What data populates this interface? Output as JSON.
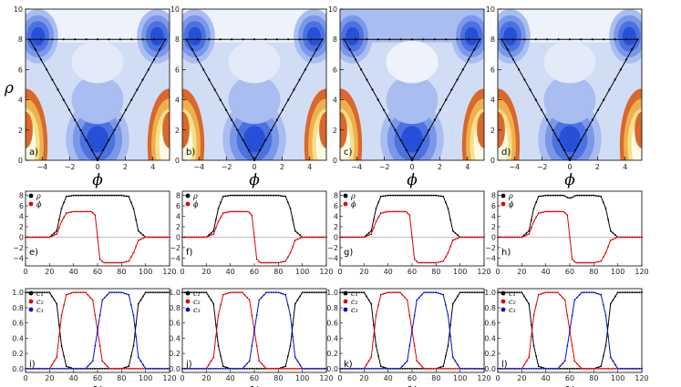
{
  "figure": {
    "contour_row": {
      "ylabel": "ρ",
      "xlabel": "ϕ",
      "panel_labels": [
        "a)",
        "b)",
        "c)",
        "d)"
      ],
      "xticks": [
        "−4",
        "−2",
        "0",
        "2",
        "4"
      ],
      "yticks": [
        "0",
        "2",
        "4",
        "6",
        "8",
        "10"
      ]
    },
    "field_row": {
      "panel_labels": [
        "e)",
        "f)",
        "g)",
        "h)"
      ],
      "legend": [
        "ρ",
        "ϕ"
      ],
      "xticks": [
        "0",
        "20",
        "40",
        "60",
        "80",
        "100",
        "120"
      ],
      "yticks": [
        "−4",
        "−2",
        "0",
        "2",
        "4",
        "6",
        "8"
      ]
    },
    "prob_row": {
      "xlabel": "x",
      "panel_labels": [
        "i)",
        "j)",
        "k)",
        "l)"
      ],
      "legend": [
        "c₁",
        "c₂",
        "c₃"
      ],
      "xticks": [
        "0",
        "20",
        "40",
        "60",
        "80",
        "100",
        "120"
      ],
      "yticks": [
        "0.0",
        "0.2",
        "0.4",
        "0.6",
        "0.8",
        "1.0"
      ]
    },
    "colors": {
      "rho": "#000000",
      "phi": "#e00000",
      "c1": "#000000",
      "c2": "#e00000",
      "c3": "#0010c8",
      "contour_deep": "#2650d8",
      "contour_light": "#eef3fb"
    }
  },
  "chart_data": [
    {
      "type": "contour",
      "panel": "a",
      "xlabel": "ϕ",
      "ylabel": "ρ",
      "xlim": [
        -5.2,
        5.2
      ],
      "ylim": [
        0,
        10
      ],
      "trajectory": {
        "x": [
          0,
          4.9,
          -4.9,
          0
        ],
        "y": [
          0,
          8,
          8,
          0
        ]
      }
    },
    {
      "type": "contour",
      "panel": "b",
      "xlabel": "ϕ",
      "ylabel": "",
      "xlim": [
        -5.2,
        5.2
      ],
      "ylim": [
        0,
        10
      ],
      "trajectory": {
        "x": [
          0,
          4.9,
          -4.9,
          0
        ],
        "y": [
          0,
          8,
          8,
          0
        ]
      }
    },
    {
      "type": "contour",
      "panel": "c",
      "xlabel": "ϕ",
      "ylabel": "",
      "xlim": [
        -5.2,
        5.2
      ],
      "ylim": [
        0,
        10
      ],
      "trajectory": {
        "x": [
          0,
          4.9,
          -4.9,
          0
        ],
        "y": [
          0,
          8,
          8,
          0
        ]
      }
    },
    {
      "type": "contour",
      "panel": "d",
      "xlabel": "ϕ",
      "ylabel": "",
      "xlim": [
        -5.2,
        5.2
      ],
      "ylim": [
        0,
        10
      ],
      "trajectory": {
        "x": [
          0,
          4.9,
          -4.9,
          0
        ],
        "y": [
          0,
          8,
          8,
          0
        ]
      }
    },
    {
      "type": "line",
      "panel": "e",
      "xlim": [
        0,
        120
      ],
      "ylim": [
        -5.5,
        8.8
      ],
      "series": [
        {
          "name": "ρ",
          "x": [
            0,
            20,
            26,
            30,
            34,
            40,
            50,
            60,
            70,
            80,
            86,
            90,
            94,
            100,
            120
          ],
          "y": [
            0,
            0,
            1.2,
            5.5,
            7.8,
            8,
            8,
            8,
            8,
            8,
            7.8,
            5.5,
            1.2,
            0,
            0
          ]
        },
        {
          "name": "ϕ",
          "x": [
            0,
            20,
            26,
            30,
            34,
            40,
            55,
            58,
            60,
            62,
            65,
            80,
            86,
            90,
            94,
            100,
            120
          ],
          "y": [
            0,
            0,
            0.6,
            3,
            4.6,
            4.9,
            4.9,
            4.2,
            0,
            -4.2,
            -4.9,
            -4.9,
            -4.6,
            -3,
            -0.6,
            0,
            0
          ]
        }
      ]
    },
    {
      "type": "line",
      "panel": "f",
      "xlim": [
        0,
        120
      ],
      "ylim": [
        -5.5,
        8.8
      ],
      "series": [
        {
          "name": "ρ",
          "x": [
            0,
            20,
            26,
            30,
            34,
            40,
            50,
            60,
            70,
            80,
            86,
            90,
            94,
            100,
            120
          ],
          "y": [
            0,
            0,
            1.2,
            5.5,
            7.8,
            8,
            8,
            8,
            8,
            8,
            7.8,
            5.5,
            1.2,
            0,
            0
          ]
        },
        {
          "name": "ϕ",
          "x": [
            0,
            20,
            26,
            30,
            34,
            40,
            55,
            58,
            60,
            62,
            65,
            80,
            86,
            90,
            94,
            100,
            120
          ],
          "y": [
            0,
            0,
            0.6,
            3,
            4.6,
            4.9,
            4.9,
            4.2,
            0,
            -4.2,
            -4.9,
            -4.9,
            -4.6,
            -3,
            -0.6,
            0,
            0
          ]
        }
      ]
    },
    {
      "type": "line",
      "panel": "g",
      "xlim": [
        0,
        120
      ],
      "ylim": [
        -5.5,
        8.8
      ],
      "series": [
        {
          "name": "ρ",
          "x": [
            0,
            20,
            26,
            30,
            34,
            40,
            50,
            60,
            70,
            80,
            86,
            90,
            94,
            100,
            120
          ],
          "y": [
            0,
            0,
            1.2,
            5.5,
            7.8,
            8,
            8,
            8,
            8,
            8,
            7.8,
            5.5,
            1.2,
            0,
            0
          ]
        },
        {
          "name": "ϕ",
          "x": [
            0,
            20,
            26,
            30,
            34,
            40,
            55,
            58,
            60,
            62,
            65,
            80,
            86,
            90,
            94,
            100,
            120
          ],
          "y": [
            0,
            0,
            0.6,
            3,
            4.6,
            4.9,
            4.9,
            4.2,
            0,
            -4.2,
            -4.9,
            -4.9,
            -4.6,
            -3,
            -0.6,
            0,
            0
          ]
        }
      ]
    },
    {
      "type": "line",
      "panel": "h",
      "xlim": [
        0,
        120
      ],
      "ylim": [
        -5.5,
        8.8
      ],
      "series": [
        {
          "name": "ρ",
          "x": [
            0,
            20,
            26,
            30,
            34,
            40,
            55,
            58,
            60,
            62,
            65,
            80,
            86,
            90,
            94,
            100,
            120
          ],
          "y": [
            0,
            0,
            1.2,
            5.5,
            7.8,
            8,
            8,
            7.6,
            7.5,
            7.6,
            8,
            8,
            7.8,
            5.5,
            1.2,
            0,
            0
          ]
        },
        {
          "name": "ϕ",
          "x": [
            0,
            20,
            26,
            30,
            34,
            40,
            55,
            58,
            60,
            62,
            65,
            80,
            86,
            90,
            94,
            100,
            120
          ],
          "y": [
            0,
            0,
            0.6,
            3,
            4.6,
            4.9,
            4.9,
            4.2,
            0,
            -4.2,
            -4.9,
            -4.9,
            -4.6,
            -3,
            -0.6,
            0,
            0
          ]
        }
      ]
    },
    {
      "type": "line",
      "panel": "i",
      "xlabel": "x",
      "xlim": [
        0,
        120
      ],
      "ylim": [
        -0.05,
        1.05
      ],
      "series": [
        {
          "name": "c₁",
          "x": [
            0,
            20,
            26,
            30,
            34,
            40,
            80,
            86,
            90,
            94,
            100,
            120
          ],
          "y": [
            1,
            1,
            0.85,
            0.3,
            0.03,
            0,
            0,
            0.03,
            0.3,
            0.85,
            1,
            1
          ]
        },
        {
          "name": "c₂",
          "x": [
            0,
            20,
            26,
            30,
            34,
            40,
            50,
            56,
            60,
            64,
            70,
            120
          ],
          "y": [
            0,
            0,
            0.15,
            0.7,
            0.97,
            1,
            1,
            0.9,
            0.5,
            0.1,
            0,
            0
          ]
        },
        {
          "name": "c₃",
          "x": [
            0,
            50,
            56,
            60,
            64,
            70,
            80,
            86,
            90,
            94,
            100,
            120
          ],
          "y": [
            0,
            0,
            0.1,
            0.5,
            0.9,
            1,
            1,
            0.97,
            0.7,
            0.15,
            0,
            0
          ]
        }
      ]
    },
    {
      "type": "line",
      "panel": "j",
      "xlabel": "x",
      "xlim": [
        0,
        120
      ],
      "ylim": [
        -0.05,
        1.05
      ],
      "series": [
        {
          "name": "c₁",
          "x": [
            0,
            20,
            26,
            30,
            34,
            40,
            80,
            86,
            90,
            94,
            100,
            120
          ],
          "y": [
            1,
            1,
            0.85,
            0.3,
            0.03,
            0,
            0,
            0.03,
            0.3,
            0.85,
            1,
            1
          ]
        },
        {
          "name": "c₂",
          "x": [
            0,
            20,
            26,
            30,
            34,
            40,
            50,
            56,
            60,
            64,
            70,
            120
          ],
          "y": [
            0,
            0,
            0.15,
            0.7,
            0.97,
            1,
            1,
            0.9,
            0.5,
            0.1,
            0,
            0
          ]
        },
        {
          "name": "c₃",
          "x": [
            0,
            50,
            56,
            60,
            64,
            70,
            80,
            86,
            90,
            94,
            100,
            120
          ],
          "y": [
            0,
            0,
            0.1,
            0.5,
            0.9,
            1,
            1,
            0.97,
            0.7,
            0.15,
            0,
            0
          ]
        }
      ]
    },
    {
      "type": "line",
      "panel": "k",
      "xlabel": "x",
      "xlim": [
        0,
        120
      ],
      "ylim": [
        -0.05,
        1.05
      ],
      "series": [
        {
          "name": "c₁",
          "x": [
            0,
            20,
            26,
            30,
            34,
            40,
            80,
            86,
            90,
            94,
            100,
            120
          ],
          "y": [
            1,
            1,
            0.85,
            0.3,
            0.03,
            0,
            0,
            0.03,
            0.3,
            0.85,
            1,
            1
          ]
        },
        {
          "name": "c₂",
          "x": [
            0,
            20,
            26,
            30,
            34,
            40,
            50,
            56,
            60,
            64,
            70,
            120
          ],
          "y": [
            0,
            0,
            0.15,
            0.7,
            0.97,
            1,
            1,
            0.9,
            0.5,
            0.1,
            0,
            0
          ]
        },
        {
          "name": "c₃",
          "x": [
            0,
            50,
            56,
            60,
            64,
            70,
            80,
            86,
            90,
            94,
            100,
            120
          ],
          "y": [
            0,
            0,
            0.1,
            0.5,
            0.9,
            1,
            1,
            0.97,
            0.7,
            0.15,
            0,
            0
          ]
        }
      ]
    },
    {
      "type": "line",
      "panel": "l",
      "xlabel": "x",
      "xlim": [
        0,
        120
      ],
      "ylim": [
        -0.05,
        1.05
      ],
      "series": [
        {
          "name": "c₁",
          "x": [
            0,
            20,
            26,
            30,
            34,
            40,
            80,
            86,
            90,
            94,
            100,
            120
          ],
          "y": [
            1,
            1,
            0.85,
            0.3,
            0.03,
            0,
            0,
            0.03,
            0.3,
            0.85,
            1,
            1
          ]
        },
        {
          "name": "c₂",
          "x": [
            0,
            20,
            26,
            30,
            34,
            40,
            50,
            56,
            60,
            64,
            70,
            120
          ],
          "y": [
            0,
            0,
            0.15,
            0.7,
            0.97,
            1,
            1,
            0.9,
            0.5,
            0.1,
            0,
            0
          ]
        },
        {
          "name": "c₃",
          "x": [
            0,
            50,
            56,
            60,
            64,
            70,
            80,
            86,
            90,
            94,
            100,
            120
          ],
          "y": [
            0,
            0,
            0.1,
            0.5,
            0.9,
            1,
            1,
            0.97,
            0.7,
            0.15,
            0,
            0
          ]
        }
      ]
    }
  ]
}
